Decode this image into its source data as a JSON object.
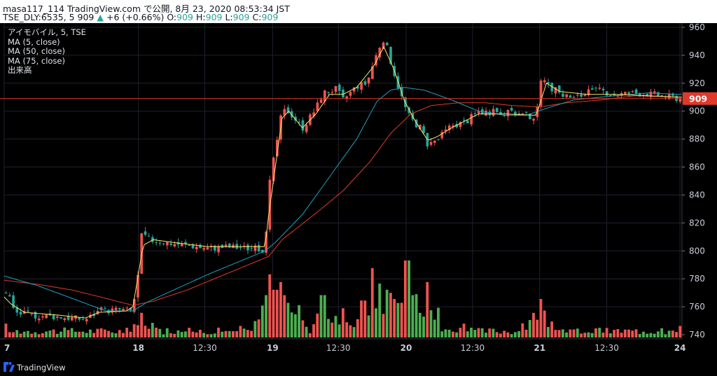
{
  "header": {
    "line1": "masa117_114 TradingView.com で公開, 8月 23, 2020 08:53:34 JST",
    "symbol": "TSE_DLY:6535, 5",
    "price": "909",
    "change_arrow": "▲",
    "change": "+6 (+0.66%)",
    "o_label": "O:",
    "o_value": "909",
    "h_label": "H:",
    "h_value": "909",
    "l_label": "L:",
    "l_value": "909",
    "c_label": "C:",
    "c_value": "909"
  },
  "legend": {
    "title": "アイモバイル, 5, TSE",
    "ma5": "MA (5, close)",
    "ma50": "MA (50, close)",
    "ma75": "MA (75, close)",
    "volume": "出来高"
  },
  "footer": {
    "brand": "TradingView"
  },
  "colors": {
    "up": "#ef5350",
    "down": "#26a69a",
    "vol_up": "#ef5350",
    "vol_down": "#4caf50",
    "ma5": "#f5e56b",
    "ma50": "#1ca2c1",
    "ma75": "#e0392b",
    "price_line": "#e0392b",
    "price_tag": "#e0392b"
  },
  "chart_data": {
    "type": "candlestick",
    "y_ticks": [
      740,
      760,
      780,
      800,
      820,
      840,
      860,
      880,
      900,
      920,
      940,
      960
    ],
    "ylim": [
      737,
      963
    ],
    "x_ticks": [
      {
        "label": "7",
        "pos": 0.0
      },
      {
        "label": "18",
        "pos": 0.198
      },
      {
        "label": "12:30",
        "pos": 0.296
      },
      {
        "label": "19",
        "pos": 0.396
      },
      {
        "label": "12:30",
        "pos": 0.493
      },
      {
        "label": "20",
        "pos": 0.593
      },
      {
        "label": "12:30",
        "pos": 0.691
      },
      {
        "label": "21",
        "pos": 0.79
      },
      {
        "label": "12:30",
        "pos": 0.889
      },
      {
        "label": "24",
        "pos": 0.997
      }
    ],
    "last_price": 909,
    "price_anchors": [
      [
        0.0,
        770
      ],
      [
        0.005,
        772
      ],
      [
        0.015,
        756
      ],
      [
        0.04,
        754
      ],
      [
        0.08,
        753
      ],
      [
        0.12,
        751
      ],
      [
        0.14,
        757
      ],
      [
        0.17,
        758
      ],
      [
        0.188,
        757
      ],
      [
        0.196,
        775
      ],
      [
        0.203,
        812
      ],
      [
        0.215,
        808
      ],
      [
        0.24,
        806
      ],
      [
        0.27,
        804
      ],
      [
        0.3,
        802
      ],
      [
        0.33,
        803
      ],
      [
        0.36,
        802
      ],
      [
        0.385,
        801
      ],
      [
        0.392,
        850
      ],
      [
        0.4,
        872
      ],
      [
        0.41,
        900
      ],
      [
        0.42,
        900
      ],
      [
        0.44,
        888
      ],
      [
        0.46,
        902
      ],
      [
        0.47,
        913
      ],
      [
        0.49,
        916
      ],
      [
        0.5,
        908
      ],
      [
        0.52,
        918
      ],
      [
        0.535,
        920
      ],
      [
        0.545,
        935
      ],
      [
        0.555,
        948
      ],
      [
        0.565,
        945
      ],
      [
        0.575,
        928
      ],
      [
        0.585,
        912
      ],
      [
        0.595,
        898
      ],
      [
        0.605,
        892
      ],
      [
        0.615,
        888
      ],
      [
        0.625,
        876
      ],
      [
        0.64,
        880
      ],
      [
        0.66,
        890
      ],
      [
        0.68,
        892
      ],
      [
        0.7,
        900
      ],
      [
        0.73,
        899
      ],
      [
        0.76,
        898
      ],
      [
        0.785,
        896
      ],
      [
        0.795,
        930
      ],
      [
        0.8,
        918
      ],
      [
        0.82,
        913
      ],
      [
        0.84,
        909
      ],
      [
        0.86,
        913
      ],
      [
        0.88,
        915
      ],
      [
        0.9,
        912
      ],
      [
        0.93,
        913
      ],
      [
        0.96,
        912
      ],
      [
        0.985,
        910
      ],
      [
        0.997,
        909
      ]
    ],
    "ma5_anchors": [
      [
        0.0,
        767
      ],
      [
        0.01,
        762
      ],
      [
        0.03,
        756
      ],
      [
        0.08,
        754
      ],
      [
        0.12,
        752
      ],
      [
        0.14,
        756
      ],
      [
        0.18,
        757
      ],
      [
        0.19,
        760
      ],
      [
        0.205,
        804
      ],
      [
        0.22,
        808
      ],
      [
        0.25,
        806
      ],
      [
        0.3,
        803
      ],
      [
        0.34,
        803
      ],
      [
        0.385,
        803
      ],
      [
        0.39,
        825
      ],
      [
        0.4,
        860
      ],
      [
        0.41,
        895
      ],
      [
        0.42,
        900
      ],
      [
        0.44,
        888
      ],
      [
        0.46,
        898
      ],
      [
        0.48,
        912
      ],
      [
        0.5,
        912
      ],
      [
        0.52,
        917
      ],
      [
        0.545,
        932
      ],
      [
        0.56,
        946
      ],
      [
        0.575,
        930
      ],
      [
        0.59,
        908
      ],
      [
        0.605,
        894
      ],
      [
        0.625,
        879
      ],
      [
        0.64,
        882
      ],
      [
        0.66,
        888
      ],
      [
        0.7,
        898
      ],
      [
        0.74,
        898
      ],
      [
        0.785,
        897
      ],
      [
        0.8,
        920
      ],
      [
        0.82,
        914
      ],
      [
        0.86,
        912
      ],
      [
        0.9,
        912
      ],
      [
        0.95,
        911
      ],
      [
        0.997,
        910
      ]
    ],
    "ma50_anchors": [
      [
        0.0,
        782
      ],
      [
        0.05,
        775
      ],
      [
        0.1,
        766
      ],
      [
        0.15,
        757
      ],
      [
        0.19,
        757
      ],
      [
        0.21,
        763
      ],
      [
        0.25,
        772
      ],
      [
        0.3,
        783
      ],
      [
        0.35,
        793
      ],
      [
        0.385,
        800
      ],
      [
        0.4,
        806
      ],
      [
        0.44,
        826
      ],
      [
        0.48,
        853
      ],
      [
        0.52,
        880
      ],
      [
        0.55,
        907
      ],
      [
        0.57,
        915
      ],
      [
        0.59,
        917
      ],
      [
        0.62,
        915
      ],
      [
        0.66,
        908
      ],
      [
        0.7,
        900
      ],
      [
        0.74,
        897
      ],
      [
        0.77,
        897
      ],
      [
        0.8,
        902
      ],
      [
        0.84,
        908
      ],
      [
        0.9,
        911
      ],
      [
        0.95,
        913
      ],
      [
        0.997,
        912
      ]
    ],
    "ma75_anchors": [
      [
        0.0,
        779
      ],
      [
        0.05,
        776
      ],
      [
        0.1,
        772
      ],
      [
        0.15,
        766
      ],
      [
        0.19,
        761
      ],
      [
        0.22,
        764
      ],
      [
        0.27,
        772
      ],
      [
        0.32,
        782
      ],
      [
        0.36,
        790
      ],
      [
        0.39,
        796
      ],
      [
        0.41,
        808
      ],
      [
        0.46,
        827
      ],
      [
        0.5,
        843
      ],
      [
        0.54,
        864
      ],
      [
        0.57,
        884
      ],
      [
        0.6,
        898
      ],
      [
        0.63,
        904
      ],
      [
        0.67,
        906
      ],
      [
        0.71,
        906
      ],
      [
        0.75,
        904
      ],
      [
        0.79,
        903
      ],
      [
        0.83,
        906
      ],
      [
        0.88,
        908
      ],
      [
        0.93,
        911
      ],
      [
        0.997,
        910
      ]
    ],
    "volume_spikes": [
      [
        0.0,
        0.18
      ],
      [
        0.195,
        0.16
      ],
      [
        0.203,
        0.32
      ],
      [
        0.24,
        0.12
      ],
      [
        0.35,
        0.15
      ],
      [
        0.385,
        0.55
      ],
      [
        0.392,
        0.82
      ],
      [
        0.395,
        0.6
      ],
      [
        0.4,
        0.62
      ],
      [
        0.41,
        0.72
      ],
      [
        0.415,
        0.55
      ],
      [
        0.42,
        0.45
      ],
      [
        0.435,
        0.42
      ],
      [
        0.47,
        0.55
      ],
      [
        0.475,
        0.35
      ],
      [
        0.49,
        0.28
      ],
      [
        0.5,
        0.38
      ],
      [
        0.53,
        0.48
      ],
      [
        0.545,
        0.9
      ],
      [
        0.555,
        0.7
      ],
      [
        0.565,
        0.62
      ],
      [
        0.57,
        0.58
      ],
      [
        0.575,
        0.5
      ],
      [
        0.585,
        0.45
      ],
      [
        0.595,
        1.0
      ],
      [
        0.6,
        0.55
      ],
      [
        0.615,
        0.32
      ],
      [
        0.625,
        0.72
      ],
      [
        0.64,
        0.2
      ],
      [
        0.68,
        0.18
      ],
      [
        0.78,
        0.32
      ],
      [
        0.79,
        0.5
      ],
      [
        0.795,
        0.35
      ],
      [
        0.81,
        0.18
      ],
      [
        0.97,
        0.12
      ],
      [
        0.996,
        0.15
      ]
    ]
  }
}
